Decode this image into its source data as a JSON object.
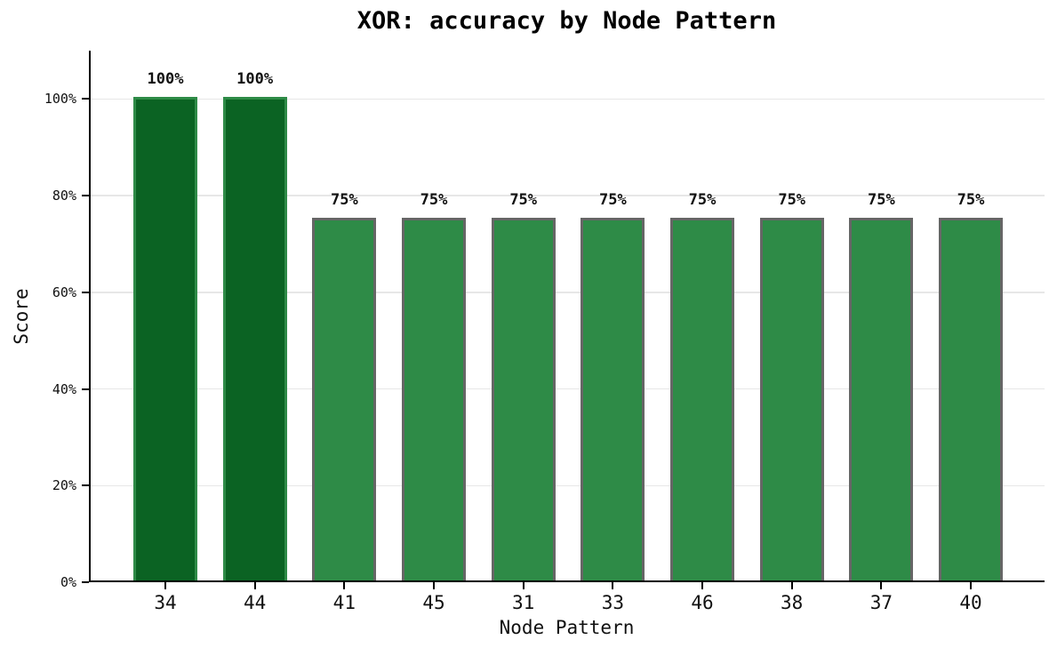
{
  "chart_data": {
    "type": "bar",
    "title": "XOR: accuracy by Node Pattern",
    "xlabel": "Node Pattern",
    "ylabel": "Score",
    "categories": [
      "34",
      "44",
      "41",
      "45",
      "31",
      "33",
      "46",
      "38",
      "37",
      "40"
    ],
    "values": [
      100,
      100,
      75,
      75,
      75,
      75,
      75,
      75,
      75,
      75
    ],
    "bars": [
      {
        "category": "34",
        "value": 100,
        "value_label": "100%",
        "fill": "#0b6323",
        "edge": "#2e8b47"
      },
      {
        "category": "44",
        "value": 100,
        "value_label": "100%",
        "fill": "#0b6323",
        "edge": "#2e8b47"
      },
      {
        "category": "41",
        "value": 75,
        "value_label": "75%",
        "fill": "#2e8b47",
        "edge": "#666666"
      },
      {
        "category": "45",
        "value": 75,
        "value_label": "75%",
        "fill": "#2e8b47",
        "edge": "#666666"
      },
      {
        "category": "31",
        "value": 75,
        "value_label": "75%",
        "fill": "#2e8b47",
        "edge": "#666666"
      },
      {
        "category": "33",
        "value": 75,
        "value_label": "75%",
        "fill": "#2e8b47",
        "edge": "#666666"
      },
      {
        "category": "46",
        "value": 75,
        "value_label": "75%",
        "fill": "#2e8b47",
        "edge": "#666666"
      },
      {
        "category": "38",
        "value": 75,
        "value_label": "75%",
        "fill": "#2e8b47",
        "edge": "#666666"
      },
      {
        "category": "37",
        "value": 75,
        "value_label": "75%",
        "fill": "#2e8b47",
        "edge": "#666666"
      },
      {
        "category": "40",
        "value": 75,
        "value_label": "75%",
        "fill": "#2e8b47",
        "edge": "#666666"
      }
    ],
    "y_ticks": [
      {
        "value": 0,
        "label": "0%"
      },
      {
        "value": 20,
        "label": "20%"
      },
      {
        "value": 40,
        "label": "40%"
      },
      {
        "value": 60,
        "label": "60%"
      },
      {
        "value": 80,
        "label": "80%"
      },
      {
        "value": 100,
        "label": "100%"
      }
    ],
    "ylim": [
      0,
      110
    ],
    "grid": "horizontal-only",
    "legend": "none",
    "spines": [
      "left",
      "bottom"
    ],
    "colors": {
      "background": "#ffffff",
      "highlight_bar_fill": "#0b6323",
      "highlight_bar_edge": "#2e8b47",
      "normal_bar_fill": "#2e8b47",
      "normal_bar_edge": "#666666",
      "gridline": "#e7e7e7",
      "axis": "#000000",
      "text": "#111111"
    }
  }
}
